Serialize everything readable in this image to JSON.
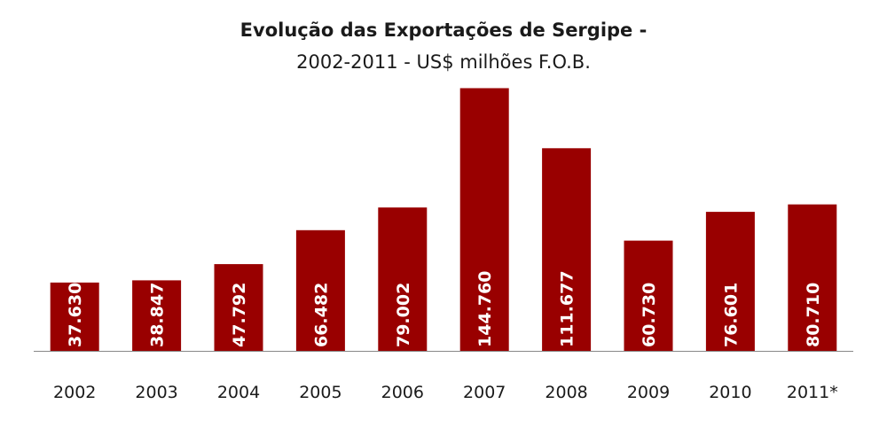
{
  "chart_data": {
    "type": "bar",
    "title": "Evolução das Exportações de Sergipe -",
    "subtitle": "2002-2011 - US$ milhões F.O.B.",
    "categories": [
      "2002",
      "2003",
      "2004",
      "2005",
      "2006",
      "2007",
      "2008",
      "2009",
      "2010",
      "2011*"
    ],
    "values": [
      37630,
      38847,
      47792,
      66482,
      79002,
      144760,
      111677,
      60730,
      76601,
      80710
    ],
    "data_labels": [
      "37.630",
      "38.847",
      "47.792",
      "66.482",
      "79.002",
      "144.760",
      "111.677",
      "60.730",
      "76.601",
      "80.710"
    ],
    "ylim": [
      0,
      145000
    ],
    "grid": false,
    "legend": "none",
    "bar_color": "#990000",
    "label_color": "#ffffff",
    "axis_color": "#888888"
  }
}
